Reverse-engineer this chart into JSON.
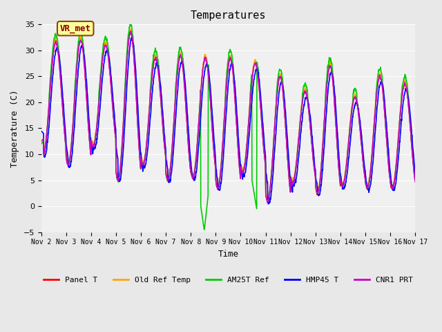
{
  "title": "Temperatures",
  "xlabel": "Time",
  "ylabel": "Temperature (C)",
  "ylim": [
    -5,
    35
  ],
  "yticks": [
    -5,
    0,
    5,
    10,
    15,
    20,
    25,
    30,
    35
  ],
  "x_tick_labels": [
    "Nov 2",
    "Nov 3",
    "Nov 4",
    "Nov 5",
    "Nov 6",
    "Nov 7",
    "Nov 8",
    "Nov 9",
    "Nov 10",
    "Nov 11",
    "Nov 12",
    "Nov 13",
    "Nov 14",
    "Nov 15",
    "Nov 16",
    "Nov 17"
  ],
  "series": [
    {
      "label": "Panel T",
      "color": "#ff0000",
      "lw": 1.2
    },
    {
      "label": "Old Ref Temp",
      "color": "#ffa500",
      "lw": 1.2
    },
    {
      "label": "AM25T Ref",
      "color": "#00cc00",
      "lw": 1.2
    },
    {
      "label": "HMP45 T",
      "color": "#0000ff",
      "lw": 1.2
    },
    {
      "label": "CNR1 PRT",
      "color": "#cc00cc",
      "lw": 1.2
    }
  ],
  "annotation_text": "VR_met",
  "bg_color": "#e8e8e8",
  "plot_bg_color": "#f0f0f0"
}
